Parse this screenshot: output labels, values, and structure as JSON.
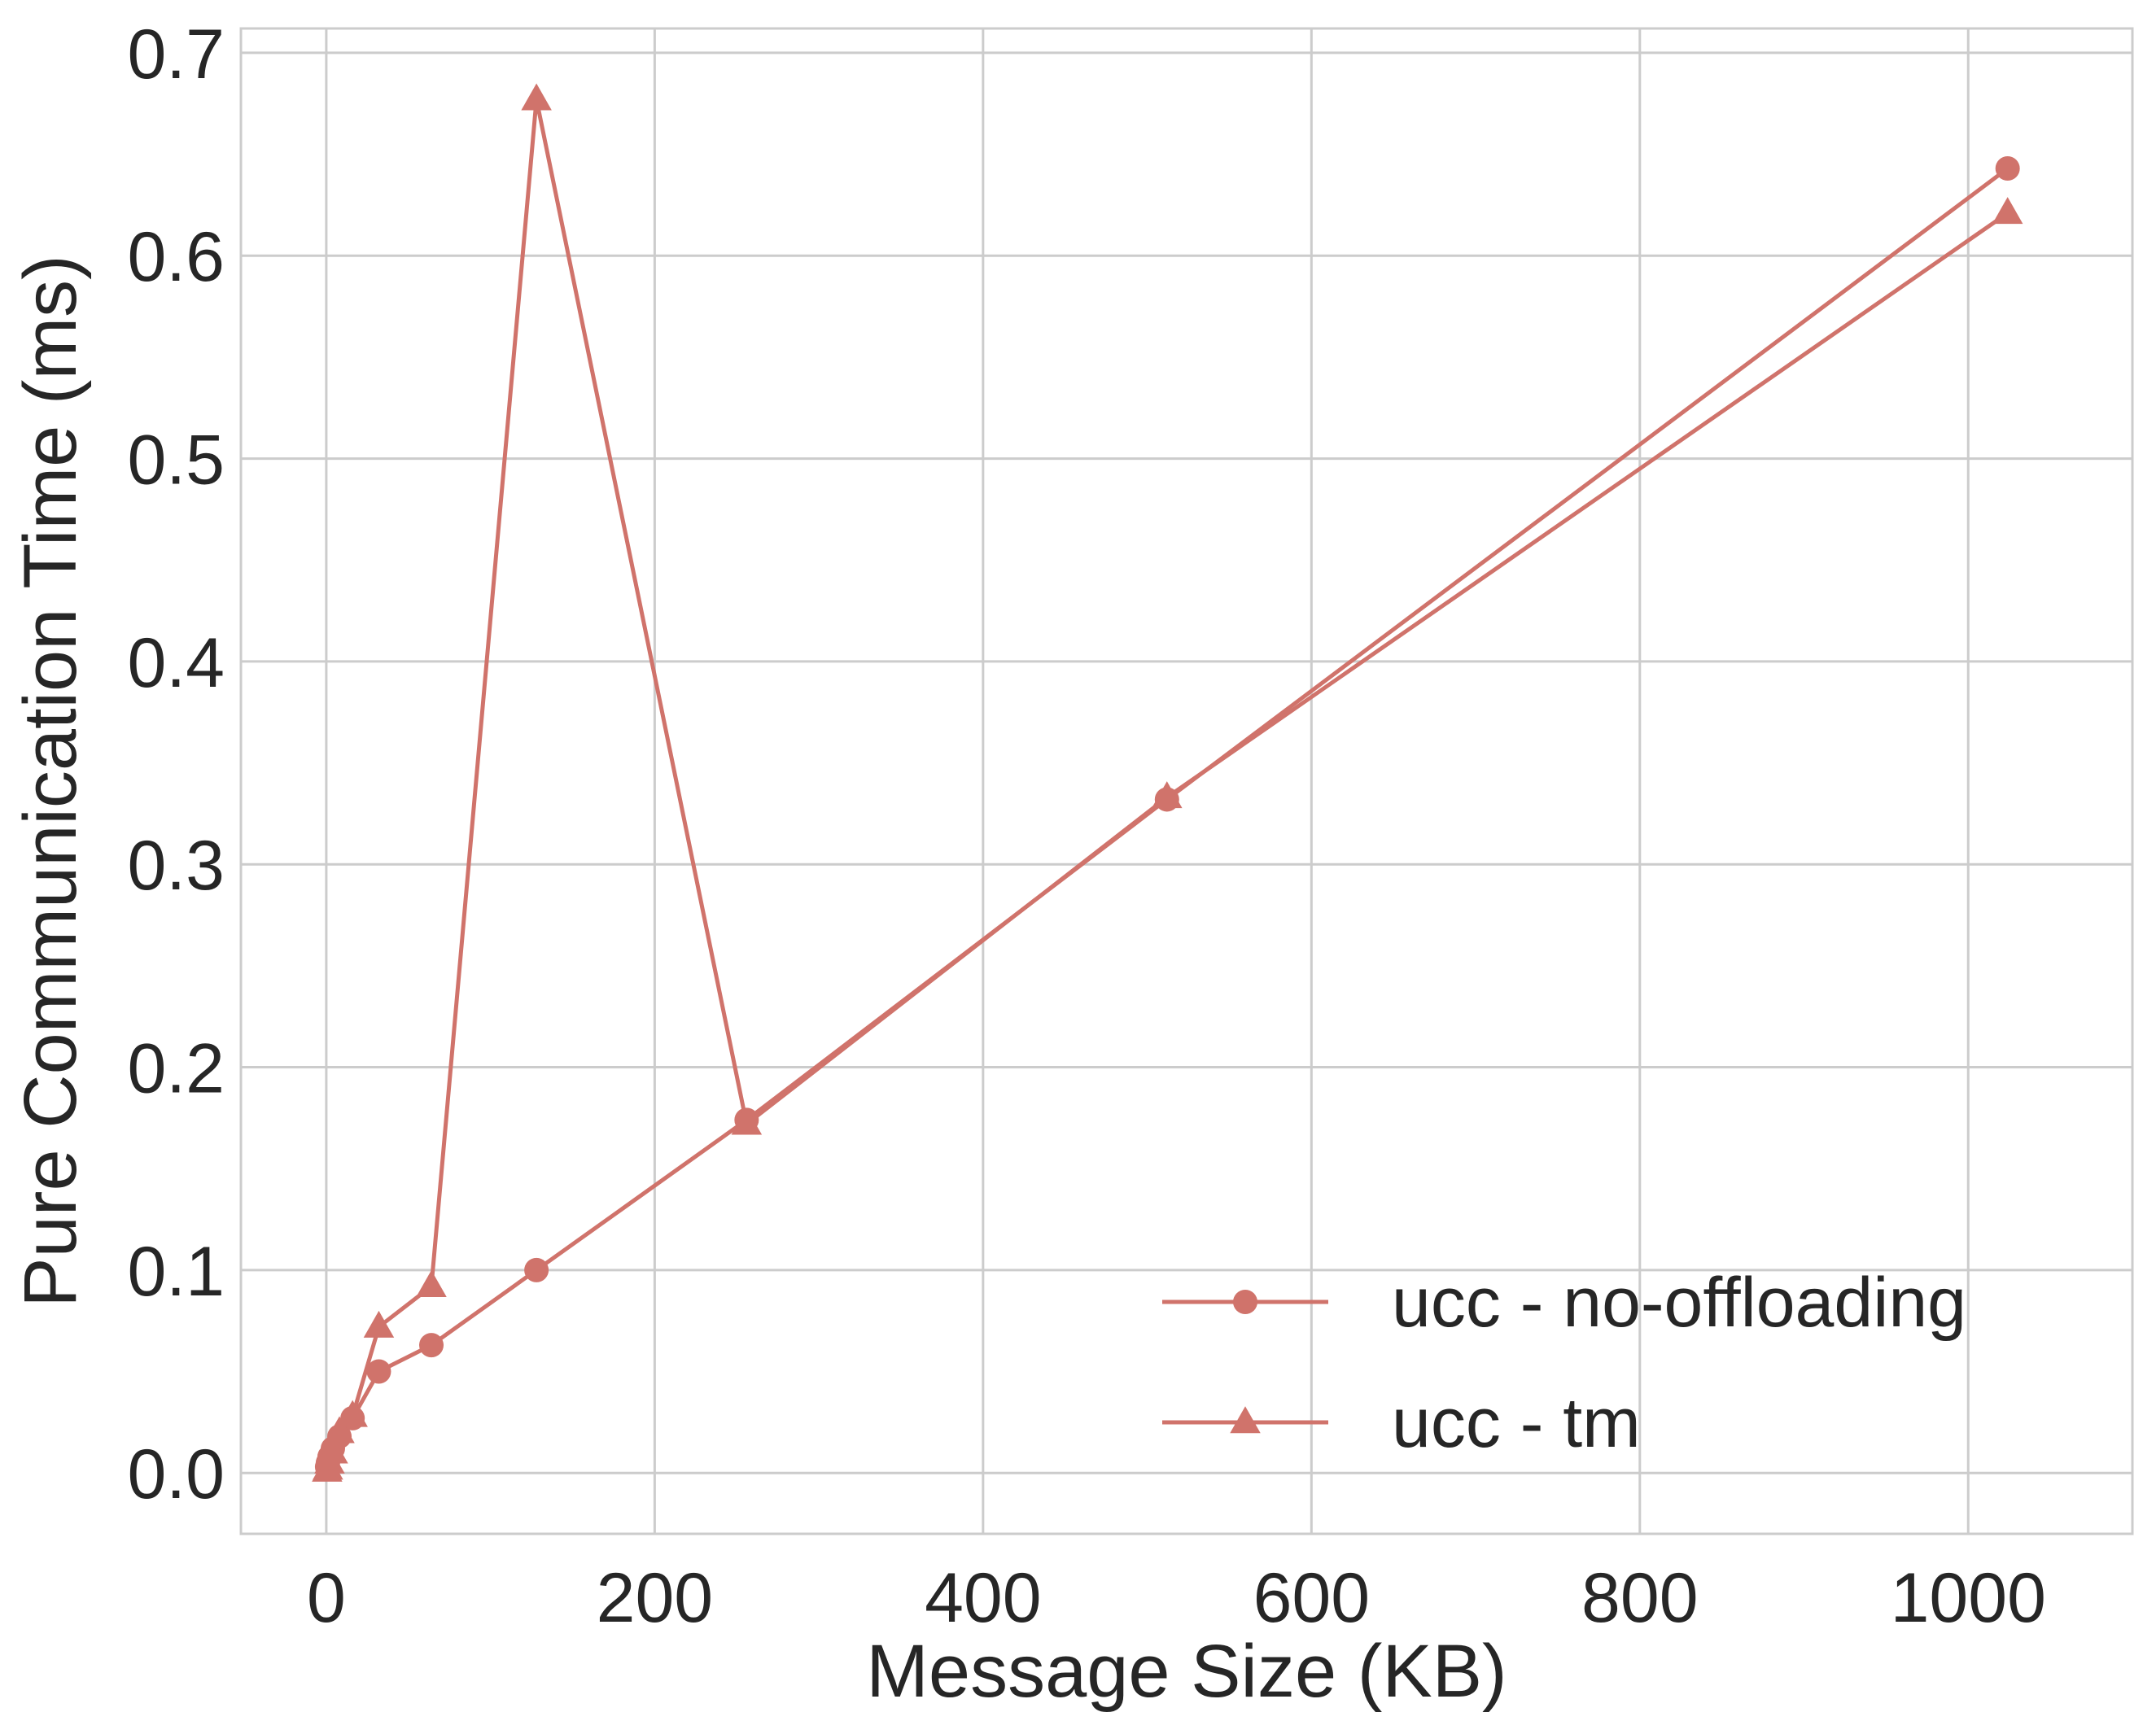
{
  "chart_data": {
    "type": "line",
    "title": "",
    "xlabel": "Message Size (KB)",
    "ylabel": "Pure Communication Time (ms)",
    "xlim": [
      -52,
      1100
    ],
    "ylim": [
      -0.03,
      0.712
    ],
    "xticks": [
      0,
      200,
      400,
      600,
      800,
      1000
    ],
    "xtick_labels": [
      "0",
      "200",
      "400",
      "600",
      "800",
      "1000"
    ],
    "yticks": [
      0.0,
      0.1,
      0.2,
      0.3,
      0.4,
      0.5,
      0.6,
      0.7
    ],
    "ytick_labels": [
      "0.0",
      "0.1",
      "0.2",
      "0.3",
      "0.4",
      "0.5",
      "0.6",
      "0.7"
    ],
    "grid": true,
    "legend_position": "lower-right",
    "color": "#d0736b",
    "series": [
      {
        "name": "ucc - no-offloading",
        "marker": "circle",
        "x": [
          0.5,
          1,
          2,
          4,
          8,
          16,
          32,
          64,
          128,
          256,
          512,
          1024
        ],
        "y": [
          0.003,
          0.005,
          0.008,
          0.012,
          0.018,
          0.027,
          0.05,
          0.063,
          0.1,
          0.174,
          0.332,
          0.643
        ]
      },
      {
        "name": "ucc - tm",
        "marker": "triangle",
        "x": [
          0.5,
          1,
          2,
          4,
          8,
          16,
          32,
          64,
          128,
          256,
          512,
          1024
        ],
        "y": [
          0.001,
          0.002,
          0.005,
          0.01,
          0.02,
          0.028,
          0.072,
          0.092,
          0.677,
          0.172,
          0.333,
          0.621
        ]
      }
    ]
  }
}
